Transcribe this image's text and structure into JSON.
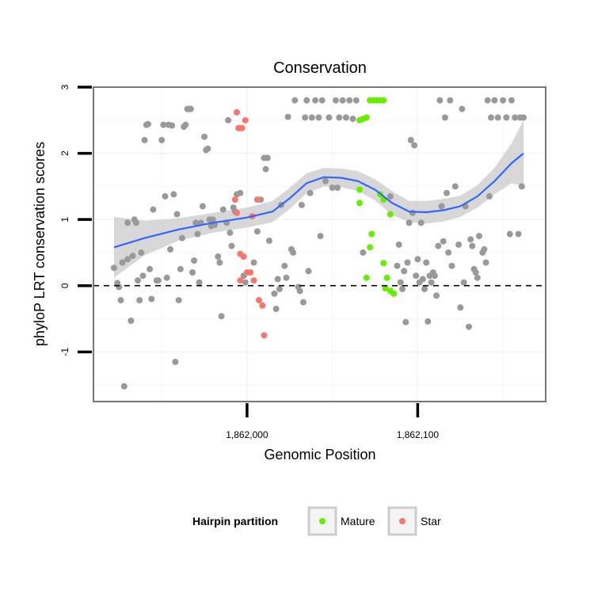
{
  "chart_data": {
    "type": "scatter",
    "title": "Conservation",
    "xlabel": "Genomic Position",
    "ylabel": "phyloP LRT conservation scores",
    "xlim": [
      1861910,
      1862175
    ],
    "ylim": [
      -1.75,
      3.0
    ],
    "x_ticks": [
      {
        "value": 1862000,
        "label": "1,862,000"
      },
      {
        "value": 1862100,
        "label": "1,862,100"
      }
    ],
    "y_ticks": [
      {
        "value": -1,
        "label": "-1"
      },
      {
        "value": 0,
        "label": "0"
      },
      {
        "value": 1,
        "label": "1"
      },
      {
        "value": 2,
        "label": "2"
      },
      {
        "value": 3,
        "label": "3"
      }
    ],
    "reference_line": {
      "y": 0,
      "style": "dashed"
    },
    "grid": true,
    "colors": {
      "background": "#ffffff",
      "other": "#999999",
      "mature": "#66ee00",
      "star": "#f8766d",
      "smooth": "#3366ff",
      "ribbon": "#d0d0d0"
    },
    "legend": {
      "title": "Hairpin partition",
      "position": "bottom",
      "entries": [
        {
          "label": "Mature",
          "color": "#66ee00"
        },
        {
          "label": "Star",
          "color": "#f8766d"
        }
      ]
    },
    "smooth": {
      "x": [
        1861922,
        1861940,
        1861960,
        1861980,
        1862000,
        1862015,
        1862025,
        1862035,
        1862045,
        1862055,
        1862065,
        1862075,
        1862085,
        1862095,
        1862105,
        1862115,
        1862125,
        1862135,
        1862145,
        1862155,
        1862162
      ],
      "y": [
        0.58,
        0.72,
        0.85,
        0.95,
        1.03,
        1.12,
        1.32,
        1.55,
        1.64,
        1.63,
        1.58,
        1.45,
        1.25,
        1.12,
        1.11,
        1.14,
        1.2,
        1.35,
        1.58,
        1.85,
        2.0
      ],
      "lower": [
        0.12,
        0.46,
        0.68,
        0.8,
        0.88,
        0.96,
        1.16,
        1.4,
        1.5,
        1.49,
        1.43,
        1.29,
        1.07,
        0.96,
        0.94,
        0.97,
        1.04,
        1.18,
        1.38,
        1.55,
        1.5
      ],
      "upper": [
        1.04,
        0.98,
        1.02,
        1.1,
        1.18,
        1.28,
        1.48,
        1.7,
        1.78,
        1.77,
        1.73,
        1.61,
        1.43,
        1.28,
        1.28,
        1.31,
        1.36,
        1.52,
        1.78,
        2.15,
        2.5
      ]
    },
    "series": [
      {
        "name": "Star",
        "points": [
          [
            1861994,
            2.62
          ],
          [
            1861995,
            2.38
          ],
          [
            1861997,
            2.38
          ],
          [
            1861999,
            2.5
          ],
          [
            1861993,
            1.3
          ],
          [
            1861994,
            1.1
          ],
          [
            1862006,
            1.3
          ],
          [
            1862003,
            1.05
          ],
          [
            1861996,
            0.48
          ],
          [
            1861998,
            0.44
          ],
          [
            1862000,
            0.2
          ],
          [
            1862002,
            0.2
          ],
          [
            1862004,
            0.08
          ],
          [
            1861996,
            0.08
          ],
          [
            1862007,
            -0.22
          ],
          [
            1862009,
            -0.3
          ],
          [
            1862010,
            -0.75
          ]
        ]
      },
      {
        "name": "Mature",
        "points": [
          [
            1862066,
            2.5
          ],
          [
            1862068,
            2.52
          ],
          [
            1862070,
            2.54
          ],
          [
            1862072,
            2.8
          ],
          [
            1862074,
            2.8
          ],
          [
            1862076,
            2.8
          ],
          [
            1862078,
            2.8
          ],
          [
            1862080,
            2.8
          ],
          [
            1862066,
            1.45
          ],
          [
            1862066,
            1.25
          ],
          [
            1862073,
            0.78
          ],
          [
            1862072,
            0.58
          ],
          [
            1862070,
            0.12
          ],
          [
            1862078,
            1.38
          ],
          [
            1862080,
            1.3
          ],
          [
            1862084,
            1.08
          ],
          [
            1862080,
            0.34
          ],
          [
            1862082,
            0.12
          ],
          [
            1862081,
            -0.04
          ],
          [
            1862084,
            -0.08
          ],
          [
            1862086,
            -0.12
          ]
        ]
      },
      {
        "name": "",
        "points": [
          [
            1861922,
            0.27
          ],
          [
            1861924,
            0.04
          ],
          [
            1861925,
            -0.02
          ],
          [
            1861926,
            -0.22
          ],
          [
            1861927,
            0.35
          ],
          [
            1861928,
            -1.52
          ],
          [
            1861930,
            0.4
          ],
          [
            1861930,
            0.95
          ],
          [
            1861932,
            -0.53
          ],
          [
            1861933,
            0.45
          ],
          [
            1861934,
            1.0
          ],
          [
            1861935,
            0.95
          ],
          [
            1861936,
            0.08
          ],
          [
            1861937,
            -0.22
          ],
          [
            1861938,
            0.5
          ],
          [
            1861939,
            0.15
          ],
          [
            1861940,
            2.2
          ],
          [
            1861941,
            2.43
          ],
          [
            1861942,
            2.44
          ],
          [
            1861943,
            0.25
          ],
          [
            1861944,
            -0.2
          ],
          [
            1861945,
            1.15
          ],
          [
            1861947,
            0.08
          ],
          [
            1861948,
            0.08
          ],
          [
            1861950,
            2.2
          ],
          [
            1861951,
            2.43
          ],
          [
            1861952,
            1.35
          ],
          [
            1861953,
            0.12
          ],
          [
            1861954,
            2.43
          ],
          [
            1861955,
            0.55
          ],
          [
            1861956,
            2.42
          ],
          [
            1861957,
            1.38
          ],
          [
            1861958,
            -1.15
          ],
          [
            1861959,
            1.08
          ],
          [
            1861960,
            -0.22
          ],
          [
            1861961,
            0.25
          ],
          [
            1861962,
            0.72
          ],
          [
            1861963,
            2.4
          ],
          [
            1861964,
            2.43
          ],
          [
            1861965,
            2.67
          ],
          [
            1861966,
            2.67
          ],
          [
            1861967,
            2.67
          ],
          [
            1861968,
            0.2
          ],
          [
            1861969,
            0.38
          ],
          [
            1861970,
            0.95
          ],
          [
            1861971,
            0.78
          ],
          [
            1861972,
            0.05
          ],
          [
            1861973,
            0.95
          ],
          [
            1861974,
            1.2
          ],
          [
            1861975,
            2.25
          ],
          [
            1861976,
            2.05
          ],
          [
            1861977,
            2.07
          ],
          [
            1861978,
            1.0
          ],
          [
            1861979,
            0.9
          ],
          [
            1861980,
            1.0
          ],
          [
            1861981,
            0.92
          ],
          [
            1861983,
            0.44
          ],
          [
            1861984,
            0.35
          ],
          [
            1861985,
            -0.46
          ],
          [
            1861986,
            1.15
          ],
          [
            1861988,
            0.95
          ],
          [
            1861989,
            2.5
          ],
          [
            1861990,
            0.8
          ],
          [
            1861991,
            0.6
          ],
          [
            1861992,
            1.18
          ],
          [
            1861993,
            1.12
          ],
          [
            1861994,
            1.38
          ],
          [
            1861996,
            1.4
          ],
          [
            1861998,
            0.15
          ],
          [
            1861999,
            0.05
          ],
          [
            1862004,
            0.35
          ],
          [
            1862006,
            0.82
          ],
          [
            1862008,
            1.3
          ],
          [
            1862010,
            1.93
          ],
          [
            1862011,
            1.76
          ],
          [
            1862012,
            1.93
          ],
          [
            1862013,
            0.68
          ],
          [
            1862016,
            -0.12
          ],
          [
            1862017,
            -0.35
          ],
          [
            1862018,
            0.1
          ],
          [
            1862019,
            -0.05
          ],
          [
            1862020,
            1.22
          ],
          [
            1862022,
            0.3
          ],
          [
            1862023,
            0.12
          ],
          [
            1862024,
            2.55
          ],
          [
            1862026,
            0.55
          ],
          [
            1862027,
            0.5
          ],
          [
            1862028,
            2.8
          ],
          [
            1862030,
            -0.02
          ],
          [
            1862031,
            -0.08
          ],
          [
            1862032,
            1.22
          ],
          [
            1862033,
            -0.25
          ],
          [
            1862034,
            2.54
          ],
          [
            1862035,
            2.8
          ],
          [
            1862036,
            0.22
          ],
          [
            1862037,
            1.4
          ],
          [
            1862038,
            2.54
          ],
          [
            1862040,
            2.8
          ],
          [
            1862042,
            2.54
          ],
          [
            1862043,
            0.75
          ],
          [
            1862044,
            2.8
          ],
          [
            1862046,
            1.58
          ],
          [
            1862048,
            2.54
          ],
          [
            1862050,
            1.48
          ],
          [
            1862052,
            2.8
          ],
          [
            1862053,
            1.48
          ],
          [
            1862054,
            2.54
          ],
          [
            1862056,
            2.8
          ],
          [
            1862058,
            2.54
          ],
          [
            1862060,
            2.8
          ],
          [
            1862062,
            2.52
          ],
          [
            1862064,
            2.8
          ],
          [
            1862068,
            0.5
          ],
          [
            1862084,
            1.35
          ],
          [
            1862088,
            0.3
          ],
          [
            1862089,
            0.62
          ],
          [
            1862090,
            0.05
          ],
          [
            1862091,
            -0.05
          ],
          [
            1862092,
            0.22
          ],
          [
            1862093,
            -0.55
          ],
          [
            1862094,
            0.35
          ],
          [
            1862095,
            0.95
          ],
          [
            1862096,
            2.2
          ],
          [
            1862097,
            1.1
          ],
          [
            1862098,
            2.12
          ],
          [
            1862099,
            0.15
          ],
          [
            1862100,
            0.4
          ],
          [
            1862101,
            0.05
          ],
          [
            1862102,
            0.95
          ],
          [
            1862103,
            0.1
          ],
          [
            1862104,
            -0.05
          ],
          [
            1862105,
            0.35
          ],
          [
            1862106,
            -0.54
          ],
          [
            1862107,
            0.15
          ],
          [
            1862108,
            0.05
          ],
          [
            1862109,
            0.2
          ],
          [
            1862110,
            0.15
          ],
          [
            1862111,
            -0.15
          ],
          [
            1862112,
            0.6
          ],
          [
            1862113,
            2.8
          ],
          [
            1862114,
            1.2
          ],
          [
            1862115,
            0.67
          ],
          [
            1862116,
            2.54
          ],
          [
            1862117,
            1.4
          ],
          [
            1862118,
            0.5
          ],
          [
            1862119,
            2.8
          ],
          [
            1862120,
            0.3
          ],
          [
            1862122,
            1.5
          ],
          [
            1862124,
            0.62
          ],
          [
            1862125,
            -0.33
          ],
          [
            1862126,
            2.67
          ],
          [
            1862127,
            0.05
          ],
          [
            1862128,
            1.2
          ],
          [
            1862130,
            -0.62
          ],
          [
            1862131,
            0.7
          ],
          [
            1862132,
            0.6
          ],
          [
            1862133,
            0.25
          ],
          [
            1862134,
            0.2
          ],
          [
            1862135,
            0.12
          ],
          [
            1862136,
            0.75
          ],
          [
            1862138,
            0.5
          ],
          [
            1862139,
            0.55
          ],
          [
            1862140,
            0.35
          ],
          [
            1862141,
            2.8
          ],
          [
            1862142,
            1.35
          ],
          [
            1862143,
            2.54
          ],
          [
            1862145,
            2.8
          ],
          [
            1862147,
            2.54
          ],
          [
            1862150,
            2.8
          ],
          [
            1862152,
            2.54
          ],
          [
            1862154,
            0.78
          ],
          [
            1862155,
            2.8
          ],
          [
            1862157,
            2.54
          ],
          [
            1862159,
            0.78
          ],
          [
            1862160,
            2.54
          ],
          [
            1862161,
            1.5
          ],
          [
            1862162,
            2.54
          ]
        ]
      }
    ]
  }
}
